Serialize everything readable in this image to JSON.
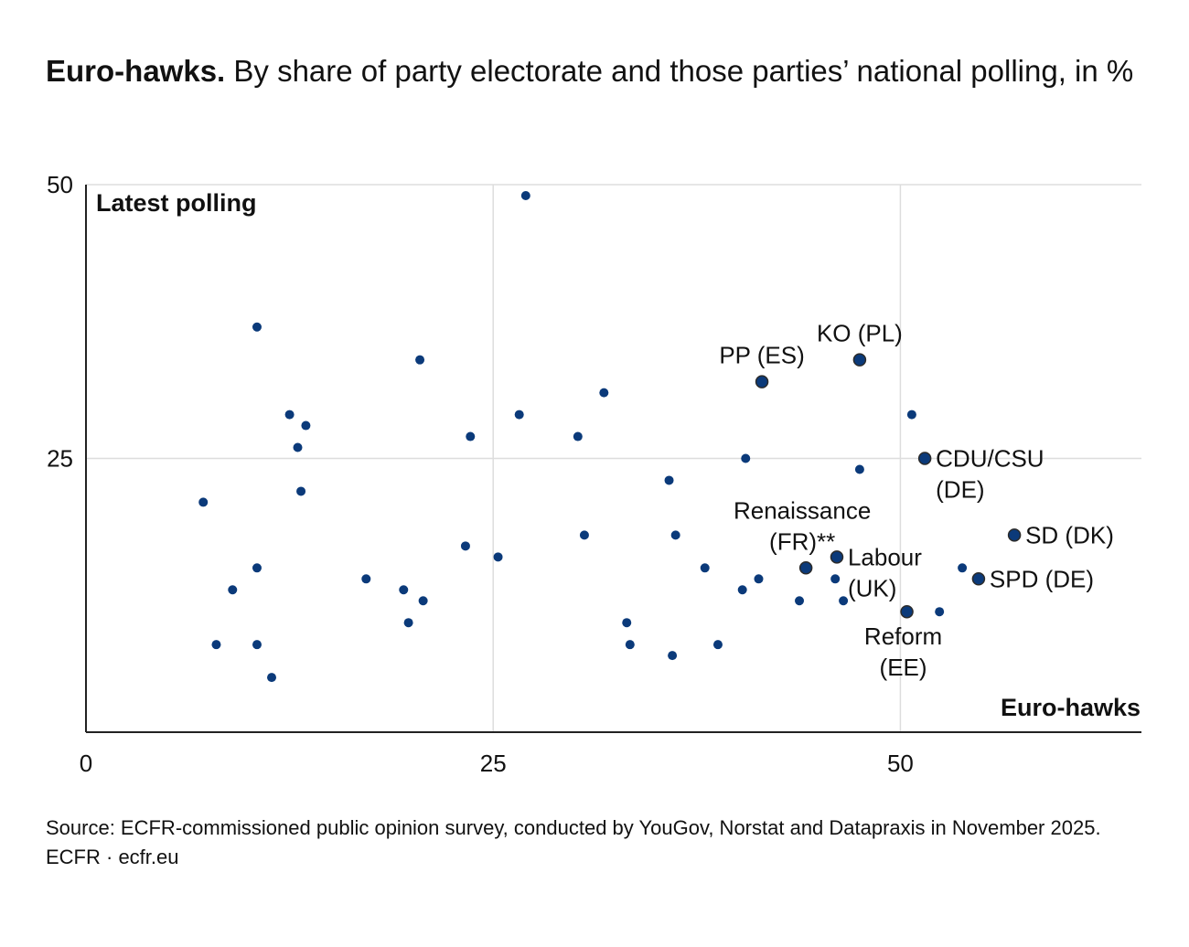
{
  "title": {
    "bold": "Euro-hawks.",
    "rest": " By share of party electorate and those parties’ national polling, in %"
  },
  "footer": {
    "source": "Source: ECFR-commissioned public opinion survey, conducted by YouGov, Norstat and Datapraxis in November 2025.",
    "credit": "ECFR · ecfr.eu"
  },
  "colors": {
    "point": "#0b3a7a",
    "grid": "#dddddd",
    "axis": "#222222",
    "text": "#111111"
  },
  "chart_data": {
    "type": "scatter",
    "xlabel": "Euro-hawks",
    "ylabel": "Latest polling",
    "xlim": [
      0,
      65
    ],
    "ylim": [
      0,
      50
    ],
    "xticks": [
      0,
      25,
      50
    ],
    "yticks": [
      25,
      50
    ],
    "grid": true,
    "points": [
      {
        "x": 27,
        "y": 49,
        "label": ""
      },
      {
        "x": 10.5,
        "y": 37,
        "label": ""
      },
      {
        "x": 20.5,
        "y": 34,
        "label": ""
      },
      {
        "x": 12.5,
        "y": 29,
        "label": ""
      },
      {
        "x": 13.5,
        "y": 28,
        "label": ""
      },
      {
        "x": 13,
        "y": 26,
        "label": ""
      },
      {
        "x": 13.2,
        "y": 22,
        "label": ""
      },
      {
        "x": 7.2,
        "y": 21,
        "label": ""
      },
      {
        "x": 10.5,
        "y": 15,
        "label": ""
      },
      {
        "x": 9,
        "y": 13,
        "label": ""
      },
      {
        "x": 8,
        "y": 8,
        "label": ""
      },
      {
        "x": 10.5,
        "y": 8,
        "label": ""
      },
      {
        "x": 11.4,
        "y": 5,
        "label": ""
      },
      {
        "x": 17.2,
        "y": 14,
        "label": ""
      },
      {
        "x": 19.5,
        "y": 13,
        "label": ""
      },
      {
        "x": 20.7,
        "y": 12,
        "label": ""
      },
      {
        "x": 19.8,
        "y": 10,
        "label": ""
      },
      {
        "x": 23.3,
        "y": 17,
        "label": ""
      },
      {
        "x": 25.3,
        "y": 16,
        "label": ""
      },
      {
        "x": 23.6,
        "y": 27,
        "label": ""
      },
      {
        "x": 26.6,
        "y": 29,
        "label": ""
      },
      {
        "x": 30.2,
        "y": 27,
        "label": ""
      },
      {
        "x": 31.8,
        "y": 31,
        "label": ""
      },
      {
        "x": 30.6,
        "y": 18,
        "label": ""
      },
      {
        "x": 33.2,
        "y": 10,
        "label": ""
      },
      {
        "x": 33.4,
        "y": 8,
        "label": ""
      },
      {
        "x": 35.8,
        "y": 23,
        "label": ""
      },
      {
        "x": 36.2,
        "y": 18,
        "label": ""
      },
      {
        "x": 36,
        "y": 7,
        "label": ""
      },
      {
        "x": 38,
        "y": 15,
        "label": ""
      },
      {
        "x": 38.8,
        "y": 8,
        "label": ""
      },
      {
        "x": 40.3,
        "y": 13,
        "label": ""
      },
      {
        "x": 41.3,
        "y": 14,
        "label": ""
      },
      {
        "x": 40.5,
        "y": 25,
        "label": ""
      },
      {
        "x": 41.5,
        "y": 32,
        "label": "PP (ES)"
      },
      {
        "x": 47.5,
        "y": 34,
        "label": "KO (PL)"
      },
      {
        "x": 50.7,
        "y": 29,
        "label": ""
      },
      {
        "x": 47.5,
        "y": 24,
        "label": ""
      },
      {
        "x": 51.5,
        "y": 25,
        "label": "CDU/CSU (DE)"
      },
      {
        "x": 44.2,
        "y": 15,
        "label": "Renaissance (FR)**"
      },
      {
        "x": 46.1,
        "y": 16,
        "label": "Labour (UK)"
      },
      {
        "x": 46,
        "y": 14,
        "label": ""
      },
      {
        "x": 43.8,
        "y": 12,
        "label": ""
      },
      {
        "x": 46.5,
        "y": 12,
        "label": ""
      },
      {
        "x": 50.4,
        "y": 11,
        "label": "Reform (EE)"
      },
      {
        "x": 52.4,
        "y": 11,
        "label": ""
      },
      {
        "x": 53.8,
        "y": 15,
        "label": ""
      },
      {
        "x": 54.8,
        "y": 14,
        "label": "SPD (DE)"
      },
      {
        "x": 57,
        "y": 18,
        "label": "SD (DK)"
      }
    ]
  }
}
